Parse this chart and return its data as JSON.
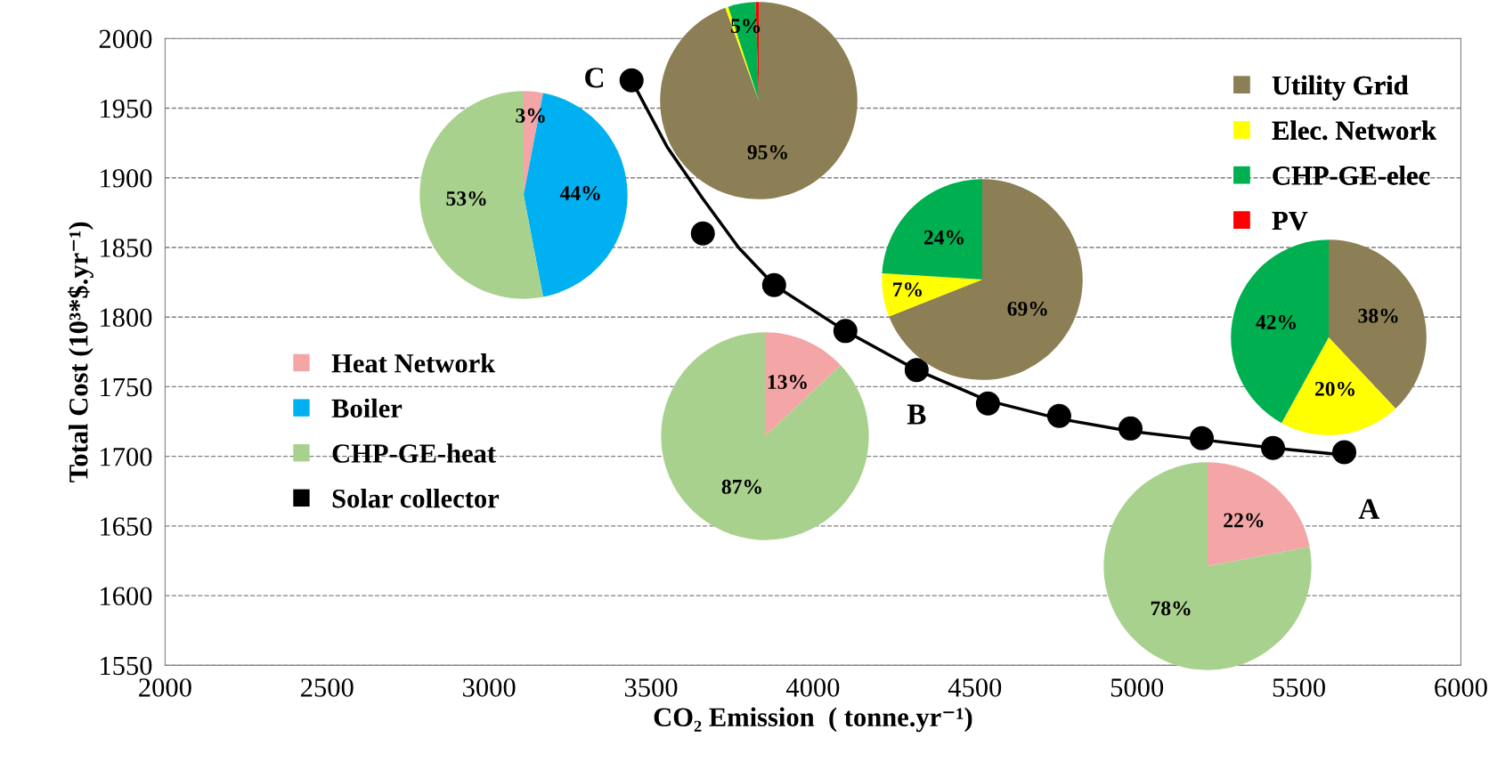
{
  "chart_data": [
    {
      "type": "scatter",
      "xlabel": "CO₂ Emission  ( tonne.yr⁻¹)",
      "ylabel": "Total Cost (10³*$.yr⁻¹)",
      "xlim": [
        2000,
        6000
      ],
      "xticks": [
        2000,
        2500,
        3000,
        3500,
        4000,
        4500,
        5000,
        5500,
        6000
      ],
      "ylim": [
        1550,
        2000
      ],
      "yticks": [
        1550,
        1600,
        1650,
        1700,
        1750,
        1800,
        1850,
        1900,
        1950,
        2000
      ],
      "grid": "y",
      "series": [
        {
          "type": "scatter",
          "color": "#000000",
          "marker": "circle",
          "x": [
            3440,
            3660,
            3880,
            4100,
            4320,
            4540,
            4760,
            4980,
            5200,
            5420,
            5640
          ],
          "values": [
            1970,
            1860,
            1823,
            1790,
            1762,
            1738,
            1729,
            1720,
            1713,
            1706,
            1703
          ]
        },
        {
          "type": "line",
          "color": "#000000",
          "line_style": "solid",
          "x": [
            3440,
            3550,
            3660,
            3770,
            3880,
            4100,
            4320,
            4540,
            4760,
            4980,
            5200,
            5420,
            5640
          ],
          "values": [
            1970,
            1922,
            1885,
            1850,
            1823,
            1790,
            1762,
            1740,
            1727,
            1718,
            1712,
            1706,
            1701
          ]
        }
      ],
      "annotations": [
        {
          "text": "C",
          "x": 3440,
          "y": 1970
        },
        {
          "text": "B",
          "x": 4320,
          "y": 1762
        },
        {
          "text": "A",
          "x": 5640,
          "y": 1703
        }
      ]
    },
    {
      "type": "pie",
      "categories": [
        "Heat Network",
        "Boiler",
        "CHP-GE-heat",
        "Solar collector"
      ],
      "values": [
        3,
        44,
        53,
        0
      ],
      "colors": [
        "#f4a6a6",
        "#00b0f0",
        "#a9d18e",
        "#000000"
      ],
      "value_labels": [
        "3%",
        "44%",
        "53%",
        null
      ],
      "legend": "bottom left"
    },
    {
      "type": "pie",
      "categories": [
        "Utility Grid",
        "Elec. Network",
        "CHP-GE-elec",
        "PV"
      ],
      "values": [
        94.5,
        0.5,
        4.5,
        0.5
      ],
      "colors": [
        "#8c7f55",
        "#ffff00",
        "#00b050",
        "#ff0000"
      ],
      "value_labels": [
        "95%",
        null,
        "5%",
        null
      ],
      "legend": "right"
    },
    {
      "type": "pie",
      "categories": [
        null,
        null,
        null,
        null
      ],
      "values": [
        69,
        7,
        24,
        0
      ],
      "colors": [
        "#8c7f55",
        "#ffff00",
        "#00b050",
        "#ff0000"
      ],
      "value_labels": [
        "69%",
        "7%",
        "24%",
        null
      ]
    },
    {
      "type": "pie",
      "categories": [
        null,
        null,
        null,
        null
      ],
      "values": [
        13,
        0,
        87,
        0
      ],
      "colors": [
        "#f4a6a6",
        "#00b0f0",
        "#a9d18e",
        "#000000"
      ],
      "value_labels": [
        "13%",
        null,
        "87%",
        null
      ]
    },
    {
      "type": "pie",
      "categories": [
        null,
        null,
        null,
        null
      ],
      "values": [
        38,
        20,
        42,
        0
      ],
      "colors": [
        "#8c7f55",
        "#ffff00",
        "#00b050",
        "#ff0000"
      ],
      "value_labels": [
        "38%",
        "20%",
        "42%",
        null
      ]
    },
    {
      "type": "pie",
      "categories": [
        null,
        null,
        null,
        null
      ],
      "values": [
        22,
        0,
        78,
        0
      ],
      "colors": [
        "#f4a6a6",
        "#00b0f0",
        "#a9d18e",
        "#000000"
      ],
      "value_labels": [
        "22%",
        null,
        "78%",
        null
      ]
    }
  ]
}
